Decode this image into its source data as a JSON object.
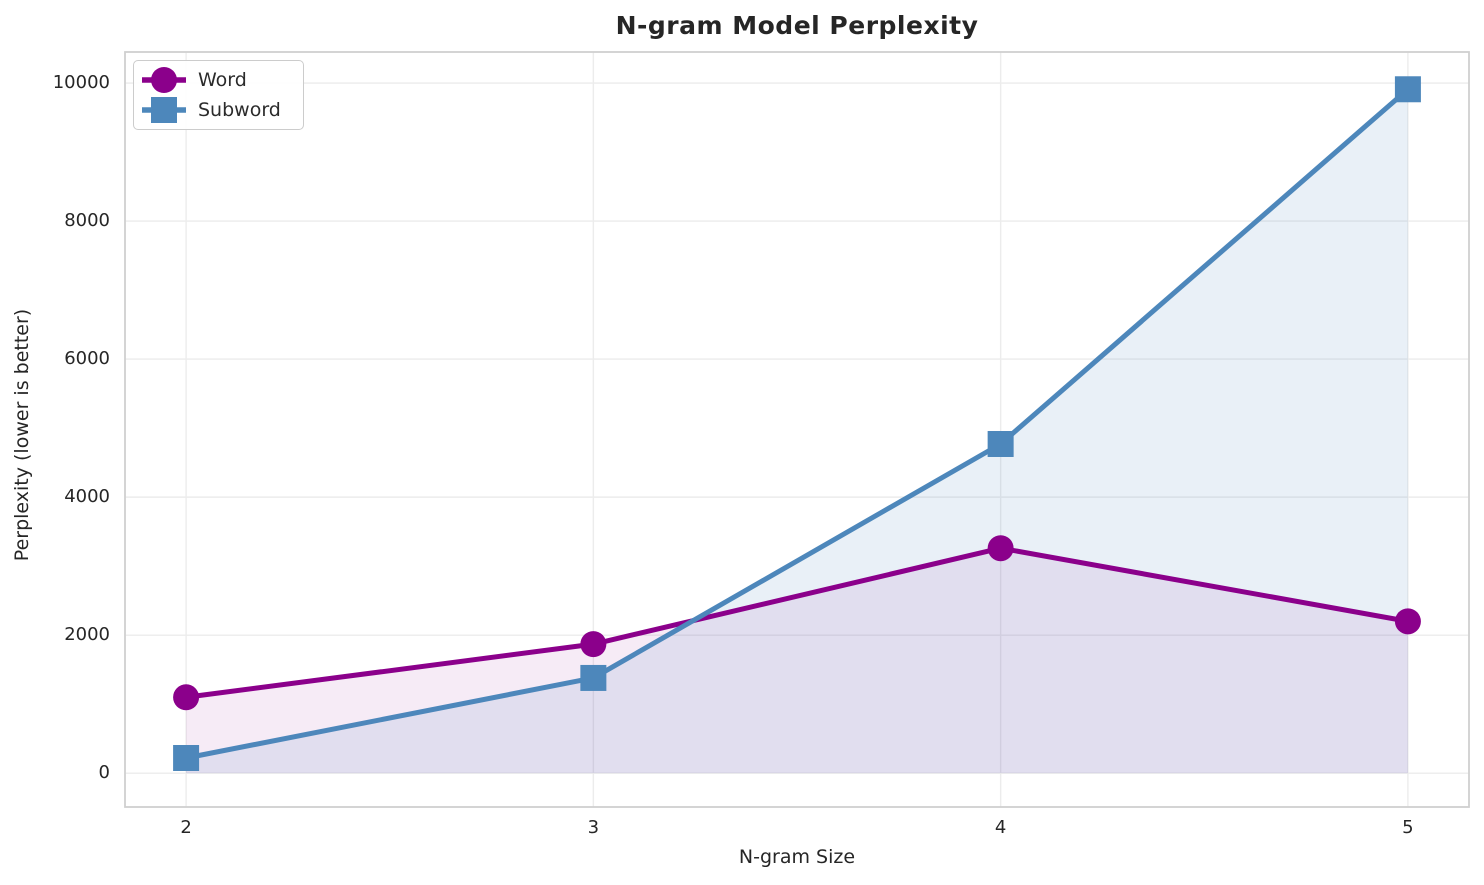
{
  "chart_data": {
    "type": "line",
    "title": "N-gram Model Perplexity",
    "xlabel": "N-gram Size",
    "ylabel": "Perplexity (lower is better)",
    "x": [
      2,
      3,
      4,
      5
    ],
    "series": [
      {
        "name": "Word",
        "values": [
          1100,
          1870,
          3260,
          2200
        ],
        "color": "#8B008B",
        "marker": "circle",
        "fill_alpha": 0.08
      },
      {
        "name": "Subword",
        "values": [
          220,
          1380,
          4770,
          9910
        ],
        "color": "#4D87BB",
        "marker": "square",
        "fill_alpha": 0.12
      }
    ],
    "xticks": [
      2,
      3,
      4,
      5
    ],
    "yticks": [
      0,
      2000,
      4000,
      6000,
      8000,
      10000
    ],
    "xlim": [
      1.85,
      5.15
    ],
    "ylim": [
      -490,
      10450
    ],
    "grid": true,
    "area_fill": true,
    "baseline": 0,
    "legend_position": "upper left",
    "style": {
      "grid_color": "#ECECEC",
      "spine_color": "#D0D0D0",
      "text_color": "#262626",
      "background": "#FFFFFF",
      "line_width": 5,
      "marker_size": 26
    }
  }
}
